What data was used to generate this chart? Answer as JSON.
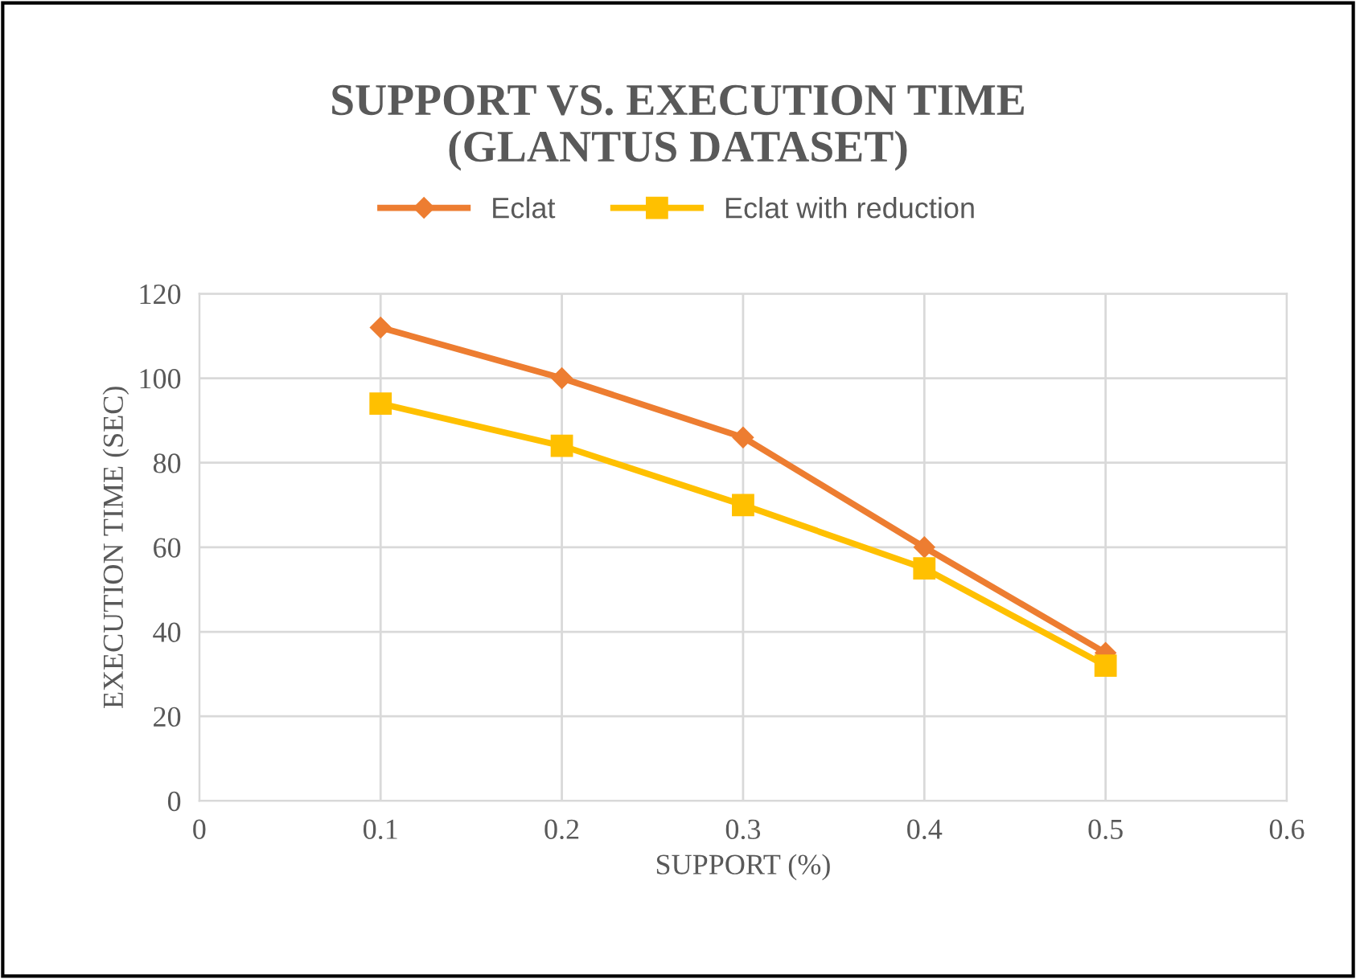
{
  "chart_data": {
    "type": "line",
    "title": "SUPPORT VS. EXECUTION TIME\n(GLANTUS DATASET)",
    "xlabel": "SUPPORT (%)",
    "ylabel": "EXECUTION TIME (SEC)",
    "x": [
      0.1,
      0.2,
      0.3,
      0.4,
      0.5
    ],
    "series": [
      {
        "name": "Eclat",
        "color": "#ed7d31",
        "marker": "diamond",
        "values": [
          112,
          100,
          86,
          60,
          35
        ]
      },
      {
        "name": "Eclat with reduction",
        "color": "#ffc000",
        "marker": "square",
        "values": [
          94,
          84,
          70,
          55,
          32
        ]
      }
    ],
    "xlim": [
      0,
      0.6
    ],
    "xticks": [
      0,
      0.1,
      0.2,
      0.3,
      0.4,
      0.5,
      0.6
    ],
    "ylim": [
      0,
      120
    ],
    "yticks": [
      0,
      20,
      40,
      60,
      80,
      100,
      120
    ],
    "grid": true,
    "legend": "top",
    "line_style": "solid"
  }
}
